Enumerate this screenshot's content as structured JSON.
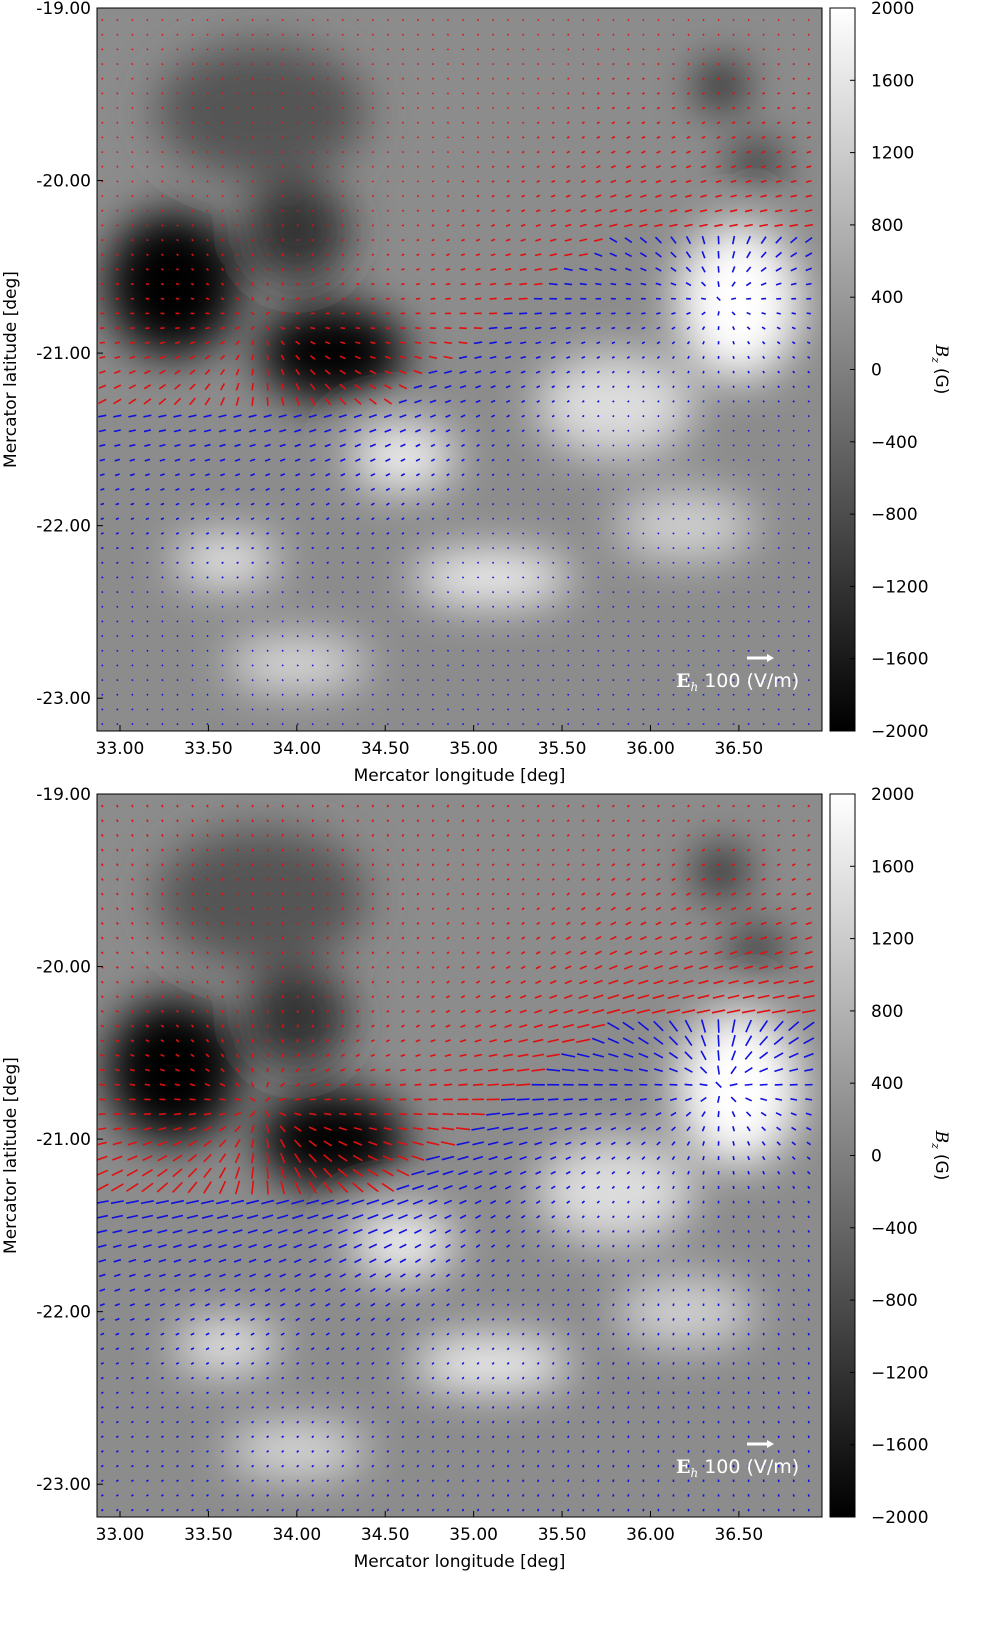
{
  "chart_data": [
    {
      "type": "quiver",
      "xlabel": "Mercator longitude [deg]",
      "ylabel": "Mercator latitude [deg]",
      "xlim": [
        32.87,
        36.97
      ],
      "ylim": [
        -23.19,
        -19
      ],
      "xticks": [
        {
          "value": 33,
          "label": "33.00"
        },
        {
          "value": 33.5,
          "label": "33.50"
        },
        {
          "value": 34,
          "label": "34.00"
        },
        {
          "value": 34.5,
          "label": "34.50"
        },
        {
          "value": 35,
          "label": "35.00"
        },
        {
          "value": 35.5,
          "label": "35.50"
        },
        {
          "value": 36,
          "label": "36.00"
        },
        {
          "value": 36.5,
          "label": "36.50"
        }
      ],
      "yticks": [
        {
          "value": -19,
          "label": "-19.00"
        },
        {
          "value": -20,
          "label": "-20.00"
        },
        {
          "value": -21,
          "label": "-21.00"
        },
        {
          "value": -22,
          "label": "-22.00"
        },
        {
          "value": -23,
          "label": "-23.00"
        }
      ],
      "colorbar": {
        "symbol": "B",
        "subscript": "z",
        "unit": "(G)",
        "lim": [
          -2000,
          2000
        ],
        "ticks": [
          2000,
          1600,
          1200,
          800,
          400,
          0,
          {
            "value": -400,
            "label": "−400"
          },
          {
            "value": -800,
            "label": "−800"
          },
          {
            "value": -1200,
            "label": "−1200"
          },
          {
            "value": -1600,
            "label": "−1600"
          },
          {
            "value": -2000,
            "label": "−2000"
          }
        ]
      },
      "key": {
        "symbol": "E",
        "subscript": "h",
        "value": 100,
        "unit": "(V/m)"
      },
      "colors": {
        "positive": "#1010e0",
        "negative": "#e01010"
      }
    },
    {
      "type": "quiver",
      "xlabel": "Mercator longitude [deg]",
      "ylabel": "Mercator latitude [deg]",
      "xlim": [
        32.87,
        36.97
      ],
      "ylim": [
        -23.19,
        -19
      ],
      "xticks": [
        {
          "value": 33,
          "label": "33.00"
        },
        {
          "value": 33.5,
          "label": "33.50"
        },
        {
          "value": 34,
          "label": "34.00"
        },
        {
          "value": 34.5,
          "label": "34.50"
        },
        {
          "value": 35,
          "label": "35.00"
        },
        {
          "value": 35.5,
          "label": "35.50"
        },
        {
          "value": 36,
          "label": "36.00"
        },
        {
          "value": 36.5,
          "label": "36.50"
        }
      ],
      "yticks": [
        {
          "value": -19,
          "label": "-19.00"
        },
        {
          "value": -20,
          "label": "-20.00"
        },
        {
          "value": -21,
          "label": "-21.00"
        },
        {
          "value": -22,
          "label": "-22.00"
        },
        {
          "value": -23,
          "label": "-23.00"
        }
      ],
      "colorbar": {
        "symbol": "B",
        "subscript": "z",
        "unit": "(G)",
        "lim": [
          -2000,
          2000
        ],
        "ticks": [
          2000,
          1600,
          1200,
          800,
          400,
          0,
          {
            "value": -400,
            "label": "−400"
          },
          {
            "value": -800,
            "label": "−800"
          },
          {
            "value": -1200,
            "label": "−1200"
          },
          {
            "value": -1600,
            "label": "−1600"
          },
          {
            "value": -2000,
            "label": "−2000"
          }
        ]
      },
      "key": {
        "symbol": "E",
        "subscript": "h",
        "value": 100,
        "unit": "(V/m)"
      },
      "colors": {
        "positive": "#1010e0",
        "negative": "#e01010"
      }
    }
  ]
}
